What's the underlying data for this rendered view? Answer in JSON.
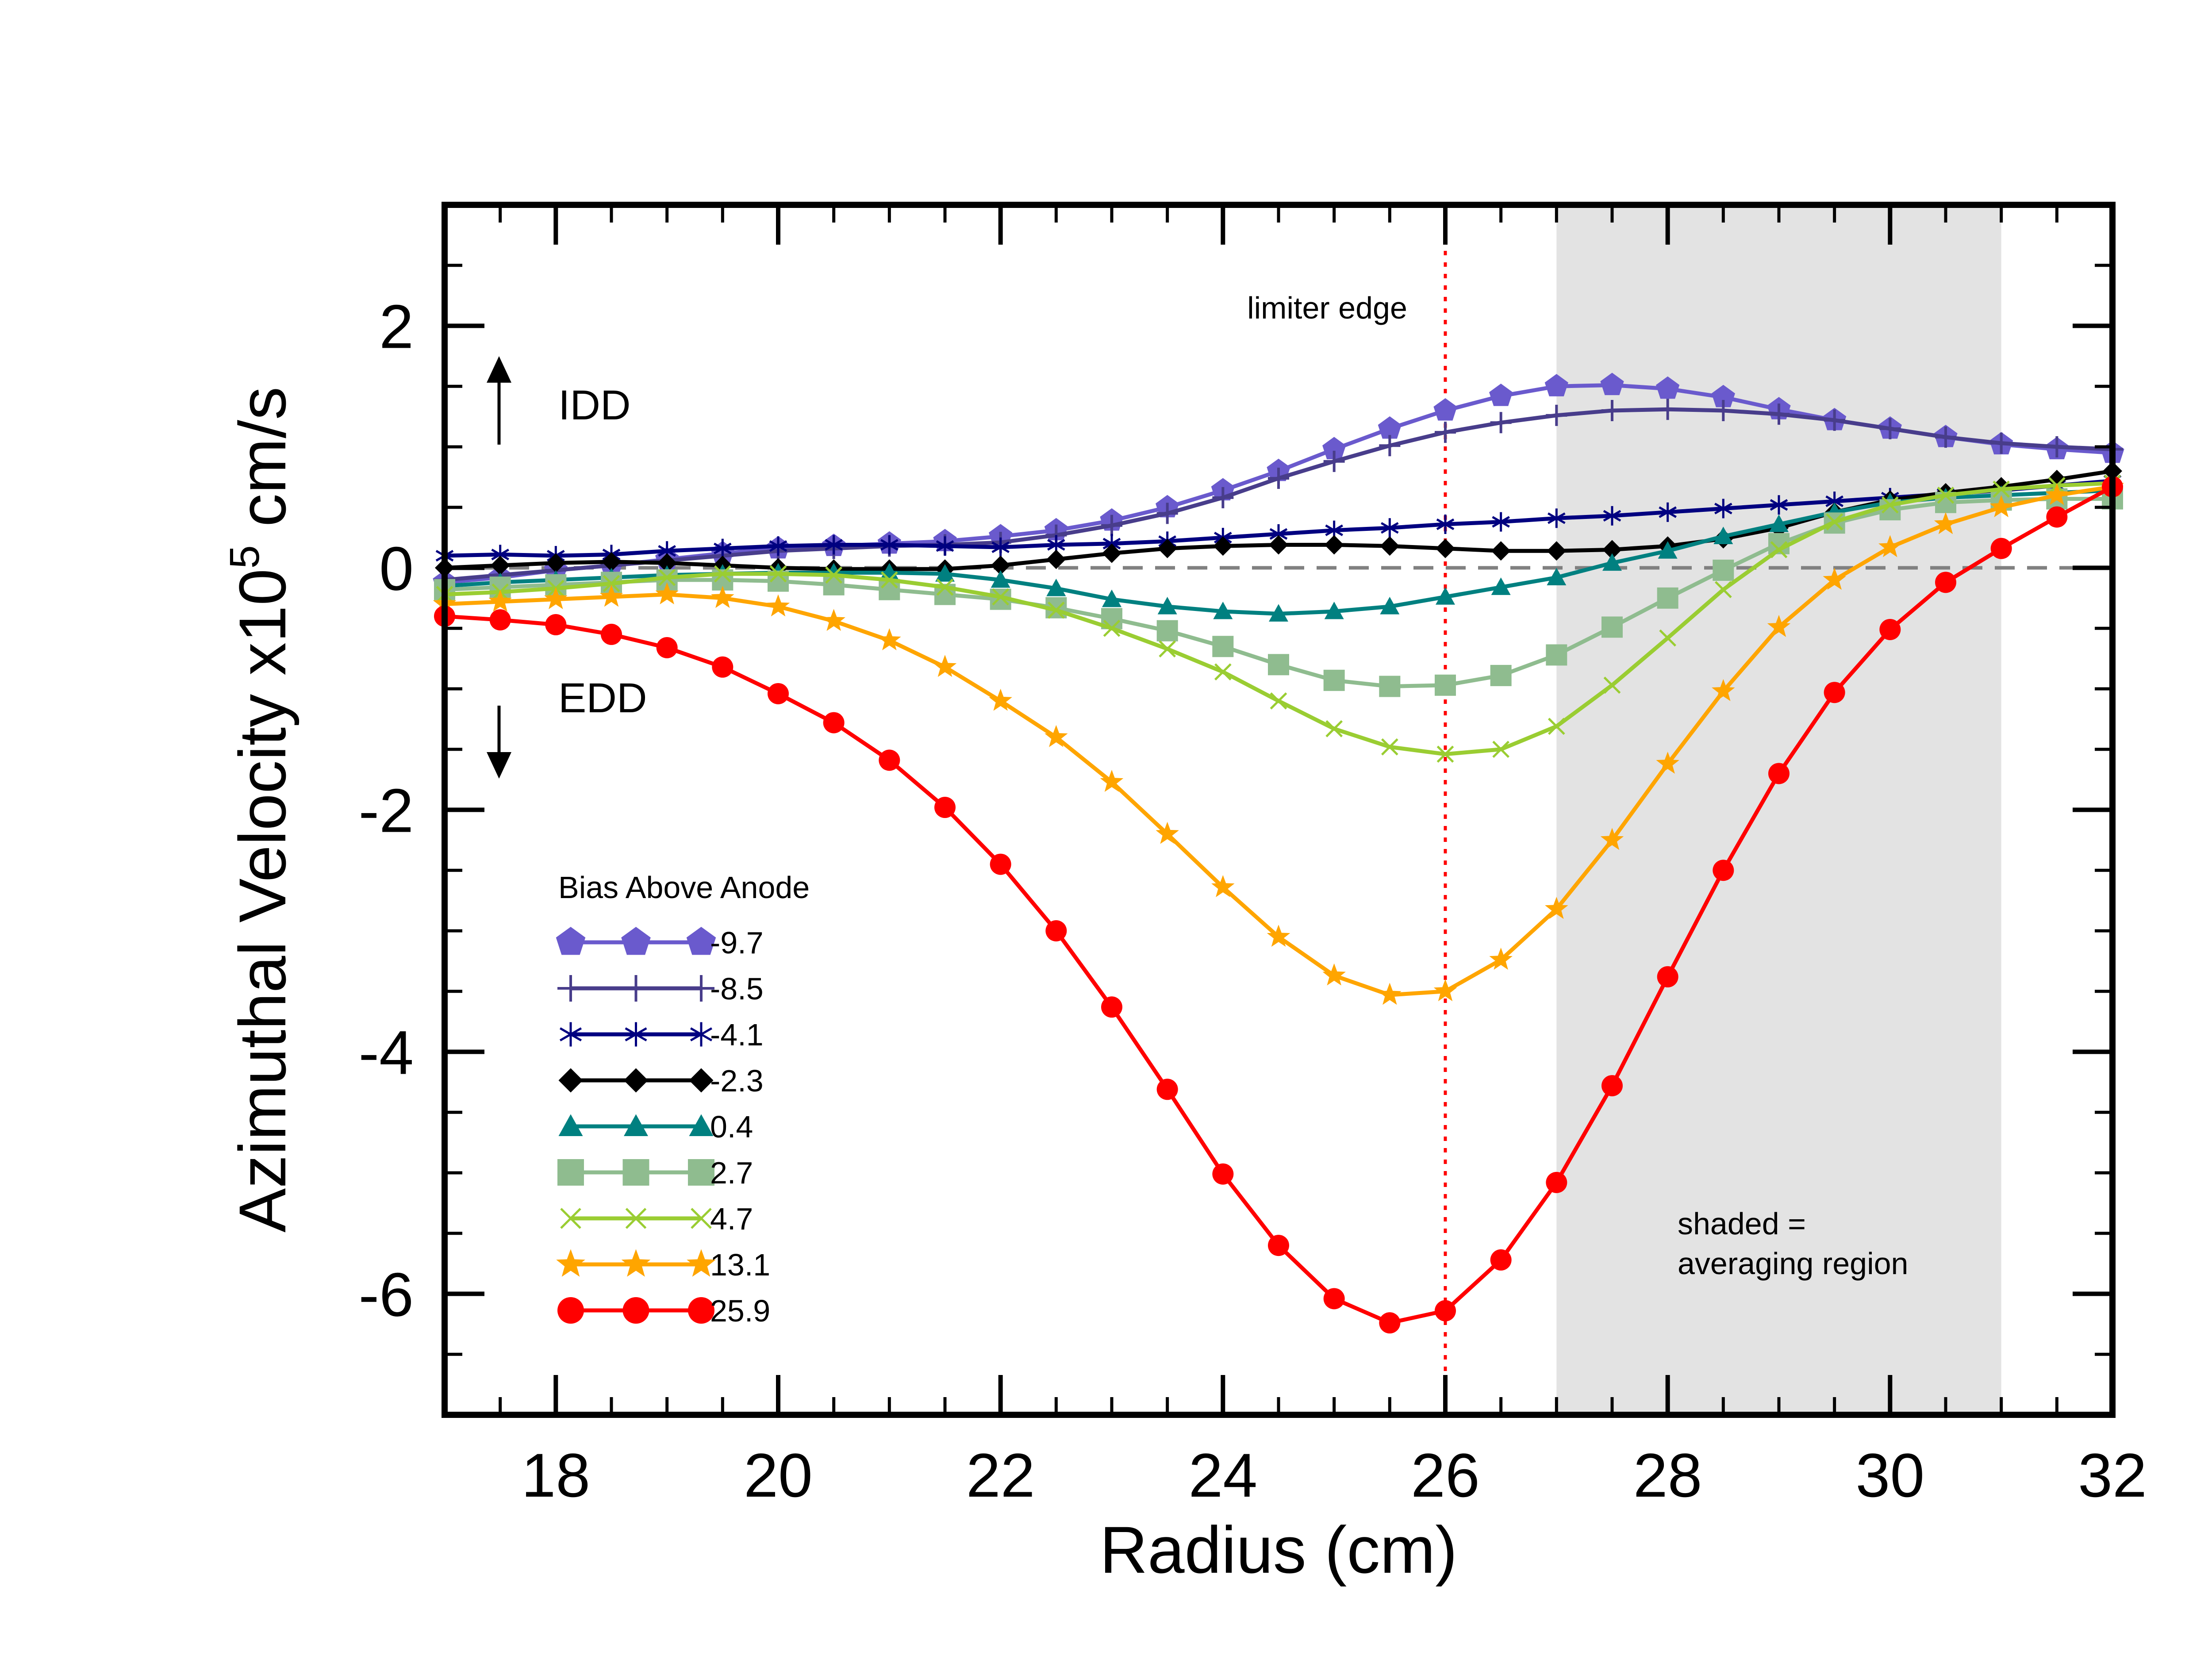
{
  "chart_data": {
    "type": "line",
    "title": "",
    "xlabel": "Radius (cm)",
    "ylabel_main": "Azimuthal Velocity x10",
    "ylabel_exp": "5",
    "ylabel_tail": " cm/s",
    "xlim": [
      17,
      32
    ],
    "ylim": [
      -7,
      3
    ],
    "xticks": [
      18,
      20,
      22,
      24,
      26,
      28,
      30,
      32
    ],
    "yticks": [
      2,
      0,
      -2,
      -4,
      -6
    ],
    "zero_line": 0,
    "limiter_edge_x": 26,
    "shaded_region": [
      27,
      31
    ],
    "legend_title": "Bias Above Anode",
    "legend_position": "lower-left",
    "annotations": {
      "limiter": "limiter edge",
      "idd": "IDD",
      "edd": "EDD",
      "shaded_line1": "shaded =",
      "shaded_line2": "averaging region"
    },
    "x": [
      17,
      17.5,
      18,
      18.5,
      19,
      19.5,
      20,
      20.5,
      21,
      21.5,
      22,
      22.5,
      23,
      23.5,
      24,
      24.5,
      25,
      25.5,
      26,
      26.5,
      27,
      27.5,
      28,
      28.5,
      29,
      29.5,
      30,
      30.5,
      31,
      31.5,
      32
    ],
    "series": [
      {
        "name": "-9.7",
        "color": "#6a5acd",
        "marker": "pentagon",
        "values": [
          -0.12,
          -0.08,
          -0.02,
          0.02,
          0.07,
          0.12,
          0.16,
          0.18,
          0.2,
          0.22,
          0.26,
          0.31,
          0.39,
          0.5,
          0.64,
          0.8,
          0.98,
          1.15,
          1.3,
          1.42,
          1.5,
          1.51,
          1.48,
          1.41,
          1.31,
          1.22,
          1.15,
          1.08,
          1.02,
          0.98,
          0.95
        ]
      },
      {
        "name": "-8.5",
        "color": "#483d8b",
        "marker": "plus",
        "values": [
          -0.1,
          -0.06,
          -0.02,
          0.02,
          0.06,
          0.1,
          0.14,
          0.16,
          0.18,
          0.19,
          0.21,
          0.27,
          0.35,
          0.45,
          0.58,
          0.74,
          0.88,
          1.01,
          1.12,
          1.2,
          1.26,
          1.3,
          1.31,
          1.3,
          1.27,
          1.22,
          1.15,
          1.08,
          1.03,
          1.0,
          0.98
        ]
      },
      {
        "name": "-4.1",
        "color": "#000080",
        "marker": "star6",
        "values": [
          0.1,
          0.11,
          0.1,
          0.11,
          0.14,
          0.16,
          0.18,
          0.19,
          0.19,
          0.18,
          0.17,
          0.19,
          0.2,
          0.22,
          0.25,
          0.28,
          0.31,
          0.33,
          0.36,
          0.38,
          0.41,
          0.43,
          0.46,
          0.49,
          0.52,
          0.55,
          0.58,
          0.61,
          0.64,
          0.68,
          0.72
        ]
      },
      {
        "name": "-2.3",
        "color": "#000000",
        "marker": "diamond",
        "values": [
          0.0,
          0.02,
          0.04,
          0.05,
          0.04,
          0.02,
          0.0,
          -0.01,
          -0.01,
          -0.01,
          0.02,
          0.07,
          0.12,
          0.16,
          0.18,
          0.19,
          0.19,
          0.18,
          0.16,
          0.14,
          0.14,
          0.15,
          0.18,
          0.24,
          0.33,
          0.46,
          0.56,
          0.62,
          0.67,
          0.73,
          0.8
        ]
      },
      {
        "name": "0.4",
        "color": "#008080",
        "marker": "triangle",
        "values": [
          -0.15,
          -0.12,
          -0.1,
          -0.08,
          -0.06,
          -0.05,
          -0.04,
          -0.04,
          -0.04,
          -0.05,
          -0.1,
          -0.17,
          -0.26,
          -0.32,
          -0.36,
          -0.38,
          -0.36,
          -0.32,
          -0.24,
          -0.16,
          -0.08,
          0.04,
          0.14,
          0.26,
          0.36,
          0.46,
          0.54,
          0.58,
          0.6,
          0.62,
          0.64
        ]
      },
      {
        "name": "2.7",
        "color": "#8fbc8f",
        "marker": "square",
        "values": [
          -0.18,
          -0.16,
          -0.14,
          -0.12,
          -0.1,
          -0.1,
          -0.11,
          -0.14,
          -0.18,
          -0.22,
          -0.26,
          -0.33,
          -0.42,
          -0.52,
          -0.65,
          -0.8,
          -0.93,
          -0.98,
          -0.97,
          -0.89,
          -0.72,
          -0.49,
          -0.25,
          -0.02,
          0.2,
          0.37,
          0.48,
          0.54,
          0.56,
          0.57,
          0.57
        ]
      },
      {
        "name": "4.7",
        "color": "#9acd32",
        "marker": "x",
        "values": [
          -0.22,
          -0.2,
          -0.17,
          -0.13,
          -0.08,
          -0.05,
          -0.05,
          -0.06,
          -0.1,
          -0.16,
          -0.24,
          -0.35,
          -0.5,
          -0.67,
          -0.86,
          -1.1,
          -1.33,
          -1.48,
          -1.54,
          -1.5,
          -1.31,
          -0.97,
          -0.58,
          -0.18,
          0.15,
          0.38,
          0.52,
          0.6,
          0.65,
          0.68,
          0.7
        ]
      },
      {
        "name": "13.1",
        "color": "#ffa500",
        "marker": "star",
        "values": [
          -0.3,
          -0.28,
          -0.26,
          -0.24,
          -0.22,
          -0.25,
          -0.32,
          -0.44,
          -0.6,
          -0.82,
          -1.1,
          -1.4,
          -1.77,
          -2.2,
          -2.64,
          -3.05,
          -3.37,
          -3.53,
          -3.5,
          -3.24,
          -2.82,
          -2.25,
          -1.62,
          -1.02,
          -0.49,
          -0.1,
          0.17,
          0.36,
          0.5,
          0.6,
          0.67
        ]
      },
      {
        "name": "25.9",
        "color": "#ff0000",
        "marker": "circle",
        "values": [
          -0.4,
          -0.43,
          -0.47,
          -0.55,
          -0.66,
          -0.82,
          -1.04,
          -1.28,
          -1.59,
          -1.98,
          -2.45,
          -3.0,
          -3.63,
          -4.31,
          -5.01,
          -5.6,
          -6.04,
          -6.24,
          -6.14,
          -5.72,
          -5.08,
          -4.28,
          -3.38,
          -2.5,
          -1.7,
          -1.03,
          -0.51,
          -0.12,
          0.16,
          0.42,
          0.67
        ]
      }
    ]
  }
}
